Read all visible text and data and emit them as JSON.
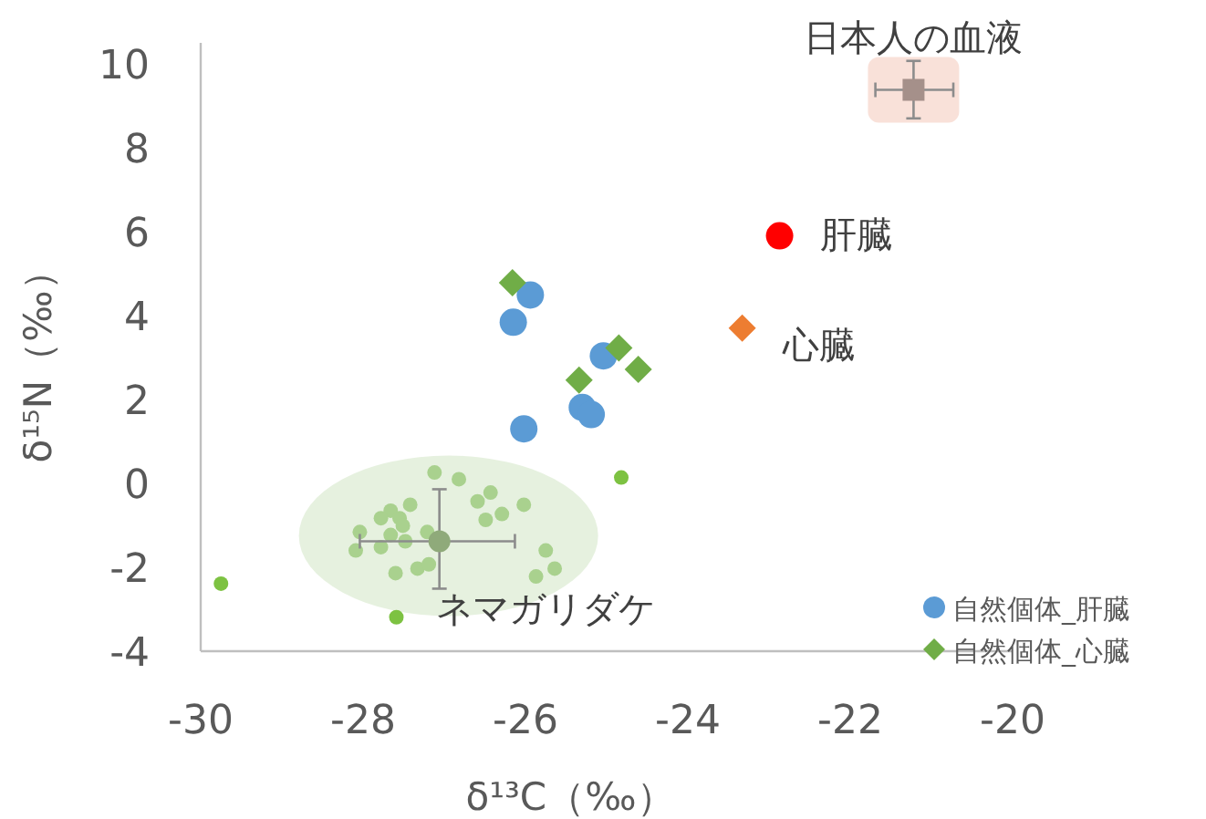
{
  "chart_data": {
    "type": "scatter",
    "xlabel": "δ¹³C（‰）",
    "ylabel": "δ¹⁵N（‰）",
    "xlim": [
      -30,
      -20
    ],
    "xticks": [
      -30,
      -28,
      -26,
      -24,
      -22,
      -20
    ],
    "ylim": [
      -4,
      10.5
    ],
    "yticks": [
      -4,
      -2,
      0,
      2,
      4,
      6,
      8,
      10
    ],
    "grid": false,
    "legend": "bottom right",
    "annotations": [
      {
        "text": "日本人の血液",
        "x": -21.22,
        "y": 9.38
      },
      {
        "text": "肝臓",
        "x": -22.87,
        "y": 5.9
      },
      {
        "text": "心臓",
        "x": -23.33,
        "y": 3.7
      },
      {
        "text": "ネマガリダケ",
        "x": -27.06,
        "y": -1.38
      }
    ],
    "series": [
      {
        "type": "scatter",
        "marker": "circle",
        "colors": [
          "#a9d18e",
          "#a9d18e",
          "#a9d18e",
          "#a9d18e",
          "#a9d18e",
          "#a9d18e",
          "#a9d18e",
          "#a9d18e",
          "#a9d18e",
          "#a9d18e",
          "#a9d18e",
          "#a9d18e",
          "#a9d18e",
          "#a9d18e",
          "#a9d18e",
          "#a9d18e",
          "#a9d18e",
          "#a9d18e",
          "#a9d18e",
          "#a9d18e",
          "#a9d18e",
          "#a9d18e",
          "#a9d18e",
          "#a9d18e",
          "#7dc242",
          "#7dc242",
          "#7dc242"
        ],
        "x": [
          -27.12,
          -26.82,
          -26.43,
          -26.59,
          -26.02,
          -26.29,
          -26.49,
          -27.42,
          -27.66,
          -27.78,
          -27.55,
          -27.51,
          -28.04,
          -27.66,
          -27.48,
          -27.21,
          -28.09,
          -27.78,
          -25.75,
          -25.64,
          -25.87,
          -27.6,
          -27.33,
          -27.19,
          -24.82,
          -29.75,
          -27.59
        ],
        "values": [
          0.26,
          0.1,
          -0.22,
          -0.43,
          -0.51,
          -0.73,
          -0.87,
          -0.51,
          -0.65,
          -0.83,
          -0.83,
          -1.01,
          -1.16,
          -1.23,
          -1.38,
          -1.16,
          -1.6,
          -1.52,
          -1.6,
          -2.03,
          -2.22,
          -2.14,
          -2.03,
          -1.93,
          0.14,
          -2.39,
          -3.19
        ]
      },
      {
        "type": "scatter",
        "marker": "circle",
        "color": "#8faa7a",
        "x": [
          -27.06
        ],
        "values": [
          -1.38
        ],
        "errors": [
          [
            -2.51,
            -0.14
          ]
        ],
        "xerrors": [
          [
            -28.04,
            -26.13
          ]
        ]
      },
      {
        "type": "scatter",
        "marker": "circle",
        "name": "自然個体_肝臓",
        "color": "#5b9bd5",
        "x": [
          -25.94,
          -26.15,
          -25.04,
          -25.3,
          -25.19,
          -26.02
        ],
        "values": [
          4.49,
          3.84,
          3.04,
          1.81,
          1.64,
          1.3
        ]
      },
      {
        "type": "scatter",
        "marker": "diamond",
        "name": "自然個体_心臓",
        "color": "#70ad47",
        "x": [
          -26.16,
          -24.85,
          -25.34,
          -24.61
        ],
        "values": [
          4.78,
          3.23,
          2.46,
          2.72
        ]
      },
      {
        "type": "scatter",
        "marker": "circle",
        "color": "#ff0000",
        "x": [
          -22.87
        ],
        "values": [
          5.9
        ]
      },
      {
        "type": "scatter",
        "marker": "diamond",
        "color": "#ed7d31",
        "x": [
          -23.33
        ],
        "values": [
          3.7
        ]
      },
      {
        "type": "scatter",
        "marker": "square",
        "color": "#a5908a",
        "x": [
          -21.22
        ],
        "values": [
          9.38
        ],
        "errors": [
          [
            8.7,
            10.07
          ]
        ],
        "xerrors": [
          [
            -21.69,
            -20.73
          ]
        ]
      }
    ]
  }
}
